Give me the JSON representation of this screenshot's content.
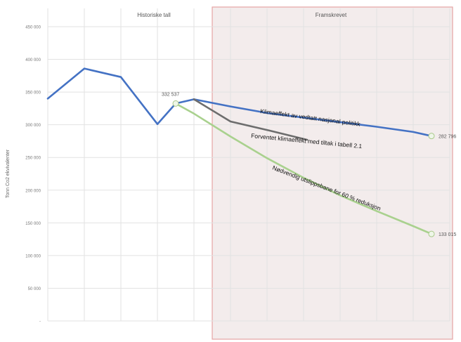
{
  "chart_data": {
    "type": "line",
    "ylabel": "Tonn Co2 ekvivalenter",
    "ylim": [
      0,
      450000
    ],
    "y_ticks": [
      "-",
      "50 000",
      "100 000",
      "150 000",
      "200 000",
      "250 000",
      "300 000",
      "350 000",
      "400 000",
      "450 000"
    ],
    "y_tick_values": [
      0,
      50000,
      100000,
      150000,
      200000,
      250000,
      300000,
      350000,
      400000,
      450000
    ],
    "x_slots": 11,
    "grid": true,
    "regions": [
      {
        "label": "Historiske tall",
        "from": 0,
        "to": 4.5
      },
      {
        "label": "Framskrevet",
        "from": 4.5,
        "to": 11
      }
    ],
    "series": [
      {
        "name": "",
        "color": "#4472c4",
        "x": [
          0,
          1,
          2,
          3,
          3.5,
          4
        ],
        "values": [
          340000,
          386000,
          373000,
          301000,
          332537,
          339000
        ]
      },
      {
        "name": "Klimaeffekt av vedtatt nasjonal politikk",
        "color": "#4472c4",
        "x": [
          4,
          5,
          6,
          7,
          8,
          9,
          10,
          10.5
        ],
        "values": [
          339000,
          328000,
          318000,
          311000,
          304000,
          297000,
          289000,
          282796
        ]
      },
      {
        "name": "Forventet klimaeffekt  med tiltak i tabell 2.1",
        "color": "#6d6d6d",
        "x": [
          4,
          4.5,
          5,
          6,
          7.1
        ],
        "values": [
          339000,
          322000,
          305000,
          292000,
          277000
        ]
      },
      {
        "name": "Nødvendig utslippsbane for 60 % reduksjon",
        "color": "#a9d18e",
        "x": [
          3.5,
          4,
          5,
          6,
          7,
          8,
          9,
          10,
          10.5
        ],
        "values": [
          332537,
          317000,
          282000,
          249000,
          219000,
          192000,
          168000,
          145000,
          133015
        ]
      }
    ],
    "point_labels": [
      {
        "x": 3.5,
        "y": 332537,
        "label": "332 537"
      },
      {
        "x": 10.5,
        "y": 282796,
        "label": "282 796"
      },
      {
        "x": 10.5,
        "y": 133015,
        "label": "133 015"
      }
    ]
  }
}
